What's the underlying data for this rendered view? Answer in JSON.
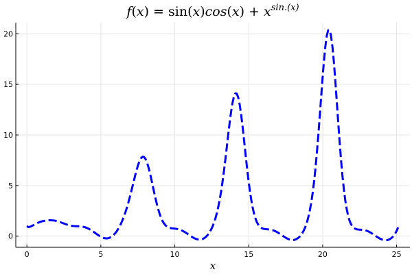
{
  "chart_data": {
    "type": "line",
    "title": "f(x) = sin(x)cos(x) + x^(sin.(x))",
    "title_parts": {
      "f": "f",
      "paren_open": "(",
      "x1": "x",
      "paren_close_eq": ") = sin(",
      "x2": "x",
      "mid": ")",
      "cos": "cos",
      "paren2_open": "(",
      "x3": "x",
      "paren2_close_plus": ") + ",
      "x4": "x",
      "exp_text": "sin.(x)"
    },
    "xlabel": "x",
    "ylabel": "",
    "xlim": [
      -0.75,
      25.9
    ],
    "ylim": [
      -1.1,
      21.1
    ],
    "x_ticks": [
      0,
      5,
      10,
      15,
      20,
      25
    ],
    "x_tick_labels": [
      "0",
      "5",
      "10",
      "15",
      "20",
      "25"
    ],
    "y_ticks": [
      0,
      5,
      10,
      15,
      20
    ],
    "y_tick_labels": [
      "0",
      "5",
      "10",
      "15",
      "20"
    ],
    "grid": true,
    "legend": "none",
    "series": [
      {
        "color": "#0000ff",
        "line_style": "dashed",
        "x_range": [
          0,
          25.1
        ],
        "sample_count": 260,
        "function": "sin(x)*cos(x) + x^sin(x)"
      }
    ]
  }
}
